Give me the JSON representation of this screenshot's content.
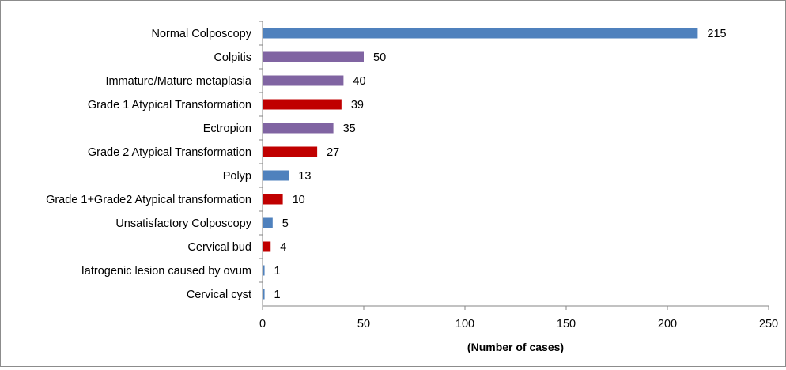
{
  "chart_data": {
    "type": "bar",
    "orientation": "horizontal",
    "categories": [
      "Normal Colposcopy",
      "Colpitis",
      "Immature/Mature metaplasia",
      "Grade 1 Atypical Transformation",
      "Ectropion",
      "Grade 2 Atypical Transformation",
      "Polyp",
      "Grade 1+Grade2 Atypical transformation",
      "Unsatisfactory Colposcopy",
      "Cervical bud",
      "Iatrogenic lesion caused by ovum",
      "Cervical cyst"
    ],
    "values": [
      215,
      50,
      40,
      39,
      35,
      27,
      13,
      10,
      5,
      4,
      1,
      1
    ],
    "colors": [
      "#4f81bd",
      "#8064a2",
      "#8064a2",
      "#c00000",
      "#8064a2",
      "#c00000",
      "#4f81bd",
      "#c00000",
      "#4f81bd",
      "#c00000",
      "#4f81bd",
      "#4f81bd"
    ],
    "xlabel": "(Number of cases)",
    "ylabel": "",
    "xlim": [
      0,
      250
    ],
    "xticks": [
      0,
      50,
      100,
      150,
      200,
      250
    ],
    "grid": false,
    "data_labels": true
  }
}
